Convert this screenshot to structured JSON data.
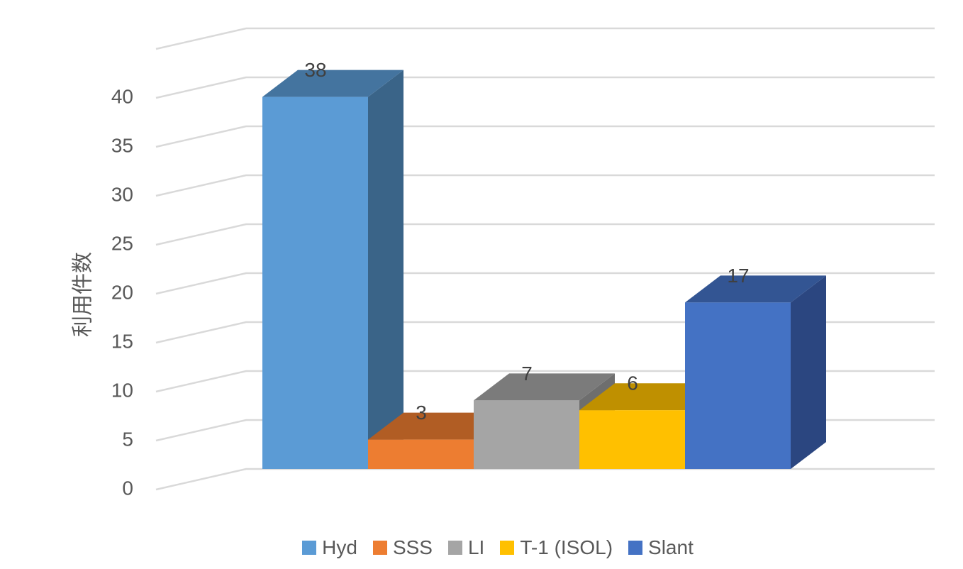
{
  "chart_data": {
    "type": "bar",
    "categories": [
      "Hyd",
      "SSS",
      "LI",
      "T-1 (ISOL)",
      "Slant"
    ],
    "values": [
      38,
      3,
      7,
      6,
      17
    ],
    "ylabel": "利用件数",
    "ylim": [
      0,
      45
    ],
    "yticks": [
      0,
      5,
      10,
      15,
      20,
      25,
      30,
      35,
      40
    ],
    "grid": true,
    "style": "3d-column",
    "legend_position": "bottom",
    "colors": {
      "front": [
        "#5B9BD5",
        "#ED7D31",
        "#A5A5A5",
        "#FFC000",
        "#4472C4"
      ],
      "top": [
        "#44749F",
        "#B15D24",
        "#7B7B7B",
        "#BF9000",
        "#335593"
      ],
      "side": [
        "#3A6488",
        "#9C5220",
        "#6E6E6E",
        "#A67D00",
        "#2B4680"
      ]
    },
    "grid_color": "#D9D9D9"
  }
}
